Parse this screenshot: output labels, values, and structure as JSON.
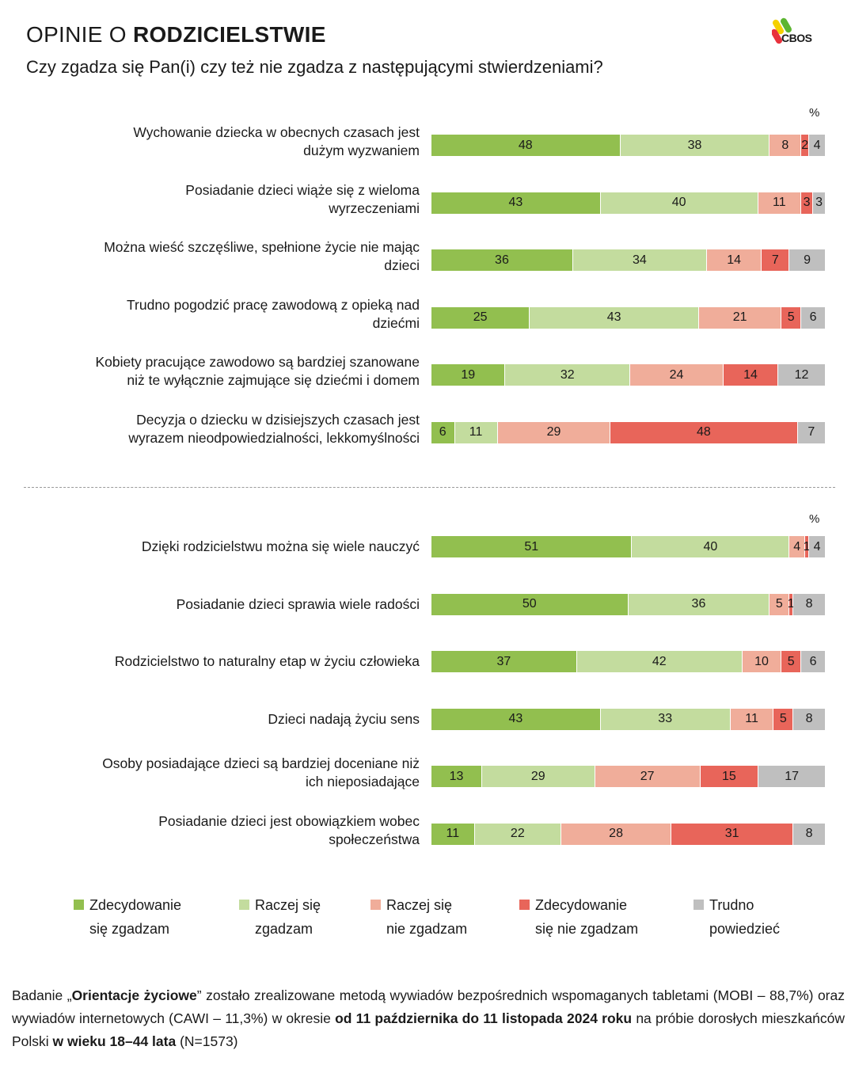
{
  "header": {
    "title_prefix": "OPINIE O ",
    "title_bold": "RODZICIELSTWIE",
    "subtitle": "Czy zgadza się Pan(i) czy też nie zgadza z następującymi stwierdzeniami?",
    "logo_text": "CBOS"
  },
  "colors": {
    "strongly_agree": "#92bf4f",
    "rather_agree": "#c3dc9e",
    "rather_disagree": "#f0ad9a",
    "strongly_disagree": "#e8655a",
    "hard_to_say": "#bfbfbf"
  },
  "chart_data": {
    "type": "bar",
    "orientation": "horizontal-stacked-100",
    "title": "OPINIE O RODZICIELSTWIE",
    "subtitle": "Czy zgadza się Pan(i) czy też nie zgadza z następującymi stwierdzeniami?",
    "unit_label": "%",
    "xlim": [
      0,
      100
    ],
    "legend_position": "bottom",
    "series_names": [
      "Zdecydowanie się zgadzam",
      "Raczej się zgadzam",
      "Raczej się nie zgadzam",
      "Zdecydowanie się nie zgadzam",
      "Trudno powiedzieć"
    ],
    "groups": [
      {
        "rows": [
          {
            "label_lines": [
              "Wychowanie dziecka w obecnych czasach jest",
              "dużym wyzwaniem"
            ],
            "values": [
              48,
              38,
              8,
              2,
              4
            ]
          },
          {
            "label_lines": [
              "Posiadanie dzieci wiąże się z wieloma",
              "wyrzeczeniami"
            ],
            "values": [
              43,
              40,
              11,
              3,
              3
            ]
          },
          {
            "label_lines": [
              "Można wieść szczęśliwe, spełnione życie nie mając",
              "dzieci"
            ],
            "values": [
              36,
              34,
              14,
              7,
              9
            ]
          },
          {
            "label_lines": [
              "Trudno pogodzić pracę zawodową z opieką nad",
              "dziećmi"
            ],
            "values": [
              25,
              43,
              21,
              5,
              6
            ]
          },
          {
            "label_lines": [
              "Kobiety pracujące zawodowo są bardziej szanowane",
              "niż te wyłącznie zajmujące się dziećmi i domem"
            ],
            "values": [
              19,
              32,
              24,
              14,
              12
            ]
          },
          {
            "label_lines": [
              "Decyzja o dziecku w dzisiejszych czasach jest",
              "wyrazem nieodpowiedzialności, lekkomyślności"
            ],
            "values": [
              6,
              11,
              29,
              48,
              7
            ]
          }
        ]
      },
      {
        "rows": [
          {
            "label_lines": [
              "Dzięki rodzicielstwu można się wiele nauczyć"
            ],
            "values": [
              51,
              40,
              4,
              1,
              4
            ]
          },
          {
            "label_lines": [
              "Posiadanie dzieci sprawia wiele radości"
            ],
            "values": [
              50,
              36,
              5,
              1,
              8
            ]
          },
          {
            "label_lines": [
              "Rodzicielstwo to naturalny etap w życiu człowieka"
            ],
            "values": [
              37,
              42,
              10,
              5,
              6
            ]
          },
          {
            "label_lines": [
              "Dzieci nadają życiu sens"
            ],
            "values": [
              43,
              33,
              11,
              5,
              8
            ]
          },
          {
            "label_lines": [
              "Osoby posiadające dzieci są bardziej doceniane niż",
              "ich nieposiadające"
            ],
            "values": [
              13,
              29,
              27,
              15,
              17
            ]
          },
          {
            "label_lines": [
              "Posiadanie dzieci jest obowiązkiem wobec",
              "społeczeństwa"
            ],
            "values": [
              11,
              22,
              28,
              31,
              8
            ]
          }
        ]
      }
    ]
  },
  "legend": [
    {
      "line1": "Zdecydowanie",
      "line2": "się zgadzam"
    },
    {
      "line1": "Raczej się",
      "line2": "zgadzam"
    },
    {
      "line1": "Raczej się",
      "line2": "nie zgadzam"
    },
    {
      "line1": "Zdecydowanie",
      "line2": "się nie zgadzam"
    },
    {
      "line1": "Trudno",
      "line2": "powiedzieć"
    }
  ],
  "footnote": {
    "p1": "Badanie „",
    "b1": "Orientacje życiowe",
    "p2": "” zostało zrealizowane metodą wywiadów bezpośrednich wspomaganych tabletami (MOBI – 88,7%) oraz wywiadów internetowych (CAWI – 11,3%) w okresie ",
    "b2": "od 11 października do 11 listopada 2024 roku",
    "p3": " na próbie dorosłych mieszkańców Polski ",
    "b3": "w wieku 18–44 lata",
    "p4": " (N=1573)"
  }
}
